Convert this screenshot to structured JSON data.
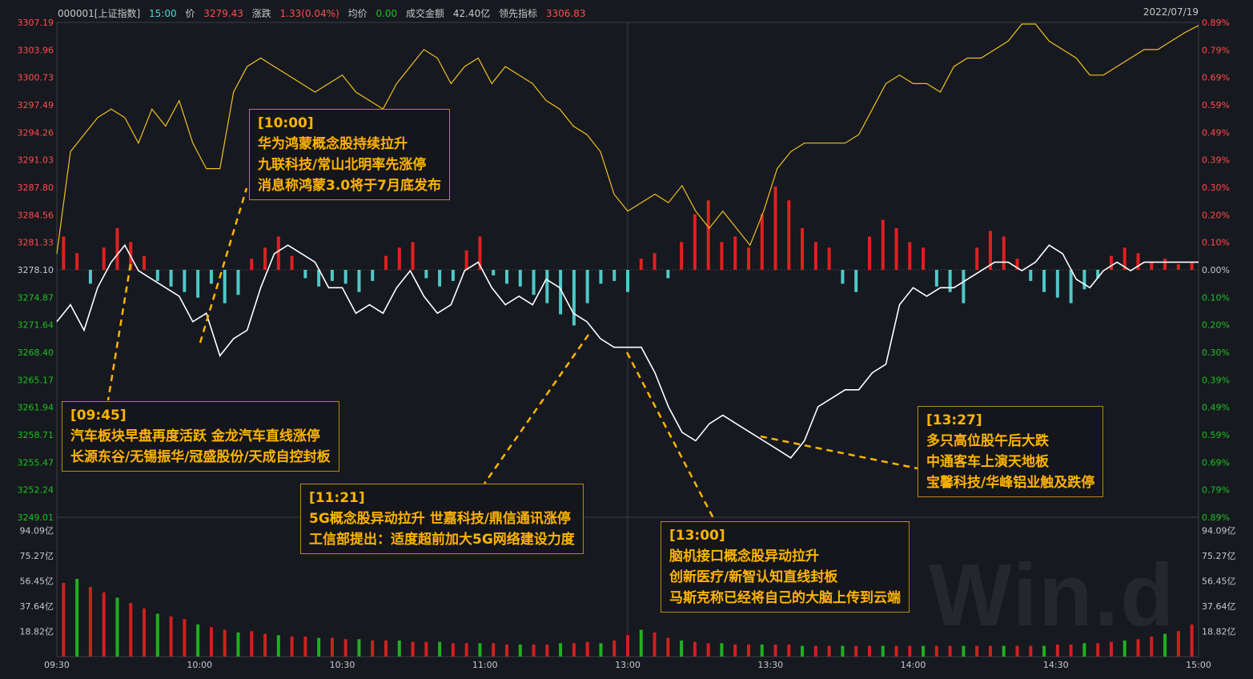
{
  "header": {
    "code": "000001[上证指数]",
    "time": "15:00",
    "price_label": "价",
    "price": "3279.43",
    "change_label": "涨跌",
    "change": "1.33(0.04%)",
    "avg_label": "均价",
    "avg": "0.00",
    "turnover_label": "成交金额",
    "turnover": "42.40亿",
    "leading_label": "领先指标",
    "leading": "3306.83",
    "date": "2022/07/19"
  },
  "colors": {
    "up": "#e02020",
    "down": "#4fc8c8",
    "price_line": "#ffffff",
    "lead_line": "#f0c020",
    "annotation": "#ffb400"
  },
  "annotations": [
    {
      "time": "[10:00]",
      "lines": [
        "华为鸿蒙概念股持续拉升",
        "九联科技/常山北明率先涨停",
        "消息称鸿蒙3.0将于7月底发布"
      ]
    },
    {
      "time": "[09:45]",
      "lines": [
        "汽车板块早盘再度活跃 金龙汽车直线涨停",
        "长源东谷/无锡振华/冠盛股份/天成自控封板"
      ]
    },
    {
      "time": "[11:21]",
      "lines": [
        "5G概念股异动拉升 世嘉科技/鼎信通讯涨停",
        "工信部提出：适度超前加大5G网络建设力度"
      ]
    },
    {
      "time": "[13:00]",
      "lines": [
        "脑机接口概念股异动拉升",
        "创新医疗/新智认知直线封板",
        "马斯克称已经将自己的大脑上传到云端"
      ]
    },
    {
      "time": "[13:27]",
      "lines": [
        "多只高位股午后大跌",
        "中通客车上演天地板",
        "宝馨科技/华峰铝业触及跌停"
      ]
    }
  ],
  "watermark": "Win.d",
  "chart_data": {
    "type": "line",
    "x_ticks": [
      "09:30",
      "10:00",
      "10:30",
      "11:00",
      "13:00",
      "13:30",
      "14:00",
      "14:30",
      "15:00"
    ],
    "y_left_ticks": [
      "3307.19",
      "3303.96",
      "3300.73",
      "3297.49",
      "3294.26",
      "3291.03",
      "3287.80",
      "3284.56",
      "3281.33",
      "3278.10",
      "3274.87",
      "3271.64",
      "3268.40",
      "3265.17",
      "3261.94",
      "3258.71",
      "3255.47",
      "3252.24",
      "3249.01"
    ],
    "y_right_ticks": [
      "0.89%",
      "0.79%",
      "0.69%",
      "0.59%",
      "0.49%",
      "0.39%",
      "0.30%",
      "0.20%",
      "0.10%",
      "0.00%",
      "0.10%",
      "0.20%",
      "0.30%",
      "0.39%",
      "0.49%",
      "0.59%",
      "0.69%",
      "0.79%",
      "0.89%"
    ],
    "vol_ticks": [
      "94.09亿",
      "75.27亿",
      "56.45亿",
      "37.64亿",
      "18.82亿"
    ],
    "prev_close": 3278.1,
    "ylim": [
      3249.01,
      3307.19
    ],
    "series": [
      {
        "name": "价",
        "values": [
          3272,
          3274,
          3271,
          3276,
          3279,
          3281,
          3278,
          3277,
          3276,
          3275,
          3272,
          3273,
          3268,
          3270,
          3271,
          3276,
          3280,
          3281,
          3280,
          3279,
          3276,
          3276,
          3273,
          3274,
          3273,
          3276,
          3278,
          3275,
          3273,
          3274,
          3278,
          3279,
          3276,
          3274,
          3275,
          3274,
          3277,
          3276,
          3273,
          3272,
          3270,
          3269,
          3269,
          3269,
          3266,
          3262,
          3259,
          3258,
          3260,
          3261,
          3260,
          3259,
          3258,
          3257,
          3256,
          3258,
          3262,
          3263,
          3264,
          3264,
          3266,
          3267,
          3274,
          3276,
          3275,
          3276,
          3276,
          3277,
          3278,
          3279,
          3279,
          3278,
          3279,
          3281,
          3280,
          3277,
          3276,
          3278,
          3279,
          3278,
          3279,
          3279,
          3279,
          3279,
          3279
        ]
      },
      {
        "name": "领先指标",
        "values": [
          3280,
          3292,
          3294,
          3296,
          3297,
          3296,
          3293,
          3297,
          3295,
          3298,
          3293,
          3290,
          3290,
          3299,
          3302,
          3303,
          3302,
          3301,
          3300,
          3299,
          3300,
          3301,
          3299,
          3298,
          3297,
          3300,
          3302,
          3304,
          3303,
          3300,
          3302,
          3303,
          3300,
          3302,
          3301,
          3300,
          3298,
          3297,
          3295,
          3294,
          3292,
          3287,
          3285,
          3286,
          3287,
          3286,
          3288,
          3285,
          3283,
          3285,
          3283,
          3281,
          3285,
          3290,
          3292,
          3293,
          3293,
          3293,
          3293,
          3294,
          3297,
          3300,
          3301,
          3300,
          3300,
          3299,
          3302,
          3303,
          3303,
          3304,
          3305,
          3307,
          3307,
          3305,
          3304,
          3303,
          3301,
          3301,
          3302,
          3303,
          3304,
          3304,
          3305,
          3306,
          3306.83
        ]
      }
    ],
    "bars_pct": [
      0.12,
      0.06,
      -0.05,
      0.08,
      0.15,
      0.1,
      0.05,
      -0.04,
      -0.06,
      -0.08,
      -0.1,
      -0.05,
      -0.12,
      -0.09,
      0.04,
      0.08,
      0.12,
      0.05,
      -0.03,
      -0.06,
      -0.04,
      -0.05,
      -0.08,
      -0.04,
      0.05,
      0.08,
      0.1,
      -0.03,
      -0.06,
      -0.04,
      0.07,
      0.12,
      -0.02,
      -0.05,
      -0.06,
      -0.09,
      -0.12,
      -0.16,
      -0.2,
      -0.12,
      -0.05,
      -0.04,
      -0.08,
      0.04,
      0.06,
      -0.03,
      0.1,
      0.2,
      0.25,
      0.1,
      0.12,
      0.08,
      0.2,
      0.3,
      0.25,
      0.15,
      0.1,
      0.08,
      -0.05,
      -0.08,
      0.12,
      0.18,
      0.15,
      0.1,
      0.08,
      -0.06,
      -0.08,
      -0.12,
      0.08,
      0.14,
      0.12,
      0.04,
      -0.04,
      -0.08,
      -0.1,
      -0.12,
      -0.07,
      -0.03,
      0.05,
      0.08,
      0.06,
      0.03,
      0.04,
      0.02,
      0.03
    ],
    "volume": [
      55,
      58,
      52,
      48,
      44,
      40,
      36,
      32,
      30,
      28,
      24,
      22,
      20,
      18,
      19,
      17,
      16,
      15,
      15,
      14,
      14,
      13,
      13,
      12,
      12,
      12,
      11,
      11,
      11,
      10,
      10,
      10,
      10,
      9,
      9,
      9,
      9,
      10,
      10,
      11,
      10,
      12,
      16,
      20,
      18,
      14,
      12,
      11,
      10,
      10,
      9,
      9,
      9,
      9,
      9,
      8,
      8,
      8,
      8,
      8,
      8,
      8,
      8,
      8,
      8,
      8,
      8,
      8,
      8,
      8,
      8,
      8,
      8,
      8,
      9,
      9,
      10,
      10,
      11,
      12,
      13,
      15,
      17,
      19,
      24
    ]
  }
}
